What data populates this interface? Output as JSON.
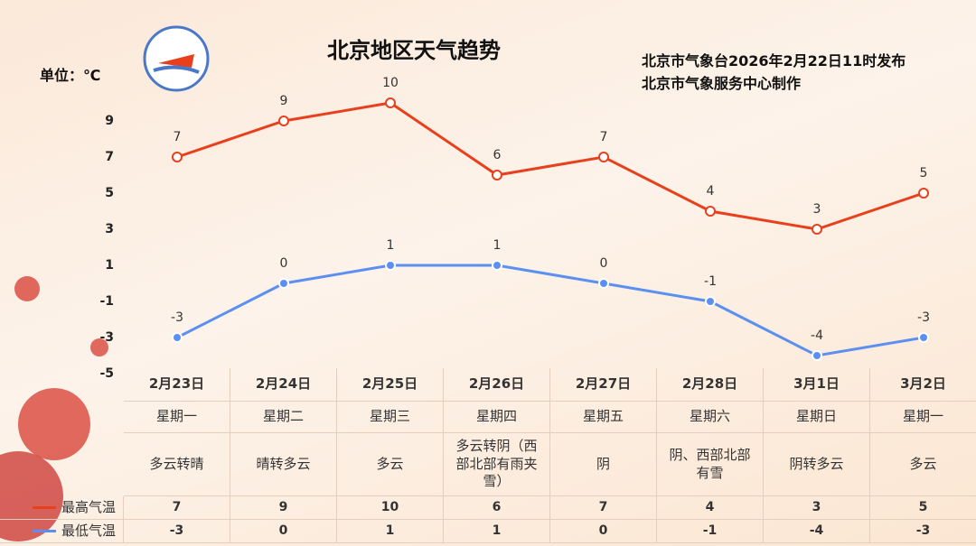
{
  "title": "北京地区天气趋势",
  "issuer": [
    "北京市气象台2026年2月22日11时发布",
    "北京市气象服务中心制作"
  ],
  "unit": "单位：℃",
  "chart_data": {
    "type": "line",
    "categories": [
      "2月23日",
      "2月24日",
      "2月25日",
      "2月26日",
      "2月27日",
      "2月28日",
      "3月1日",
      "3月2日"
    ],
    "weekdays": [
      "星期一",
      "星期二",
      "星期三",
      "星期四",
      "星期五",
      "星期六",
      "星期日",
      "星期一"
    ],
    "weather": [
      "多云转晴",
      "晴转多云",
      "多云",
      "多云转阴（西部北部有雨夹雪）",
      "阴",
      "阴、西部北部有雪",
      "阴转多云",
      "多云"
    ],
    "series": [
      {
        "name": "最高气温",
        "color": "#e8401c",
        "values": [
          7,
          9,
          10,
          6,
          7,
          4,
          3,
          5
        ]
      },
      {
        "name": "最低气温",
        "color": "#5b8ff0",
        "values": [
          -3,
          0,
          1,
          1,
          0,
          -1,
          -4,
          -3
        ]
      }
    ],
    "ylim": [
      -5,
      11
    ],
    "yticks": [
      9,
      7,
      5,
      3,
      1,
      -1,
      -3,
      -5
    ]
  }
}
